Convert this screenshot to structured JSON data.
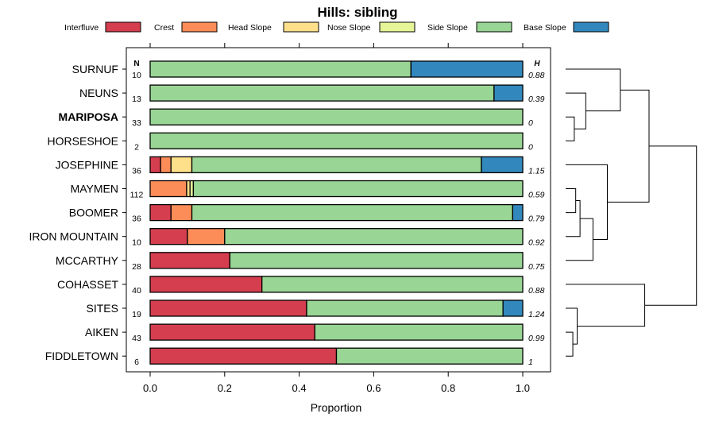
{
  "chart_data": {
    "type": "bar",
    "orientation": "horizontal",
    "stacked": true,
    "title": "Hills: sibling",
    "xlabel": "Proportion",
    "ylabel": "",
    "xlim": [
      0,
      1
    ],
    "xticks": [
      "0.0",
      "0.2",
      "0.4",
      "0.6",
      "0.8",
      "1.0"
    ],
    "xtick_values": [
      0,
      0.2,
      0.4,
      0.6,
      0.8,
      1.0
    ],
    "n_header": "N",
    "h_header": "H",
    "legend_position": "top",
    "legend": [
      {
        "name": "Interfluve",
        "color": "#D53E4F"
      },
      {
        "name": "Crest",
        "color": "#FC8D59"
      },
      {
        "name": "Head Slope",
        "color": "#FEE08B"
      },
      {
        "name": "Nose Slope",
        "color": "#E6F598"
      },
      {
        "name": "Side Slope",
        "color": "#99D594"
      },
      {
        "name": "Base Slope",
        "color": "#3288BD"
      }
    ],
    "categories": [
      "SURNUF",
      "NEUNS",
      "MARIPOSA",
      "HORSESHOE",
      "JOSEPHINE",
      "MAYMEN",
      "BOOMER",
      "IRON MOUNTAIN",
      "MCCARTHY",
      "COHASSET",
      "SITES",
      "AIKEN",
      "FIDDLETOWN"
    ],
    "highlight": "MARIPOSA",
    "n": [
      "10",
      "13",
      "33",
      "2",
      "36",
      "112",
      "36",
      "10",
      "28",
      "40",
      "19",
      "43",
      "6"
    ],
    "h": [
      "0.88",
      "0.39",
      "0",
      "0",
      "1.15",
      "0.59",
      "0.79",
      "0.92",
      "0.75",
      "0.88",
      "1.24",
      "0.99",
      "1"
    ],
    "series": [
      {
        "name": "Interfluve",
        "values": [
          0,
          0,
          0,
          0,
          0.028,
          0,
          0.056,
          0.1,
          0.214,
          0.3,
          0.42,
          0.442,
          0.5
        ]
      },
      {
        "name": "Crest",
        "values": [
          0,
          0,
          0,
          0,
          0.028,
          0.098,
          0.056,
          0.1,
          0,
          0,
          0,
          0,
          0
        ]
      },
      {
        "name": "Head Slope",
        "values": [
          0,
          0,
          0,
          0,
          0.056,
          0.009,
          0,
          0,
          0,
          0,
          0,
          0,
          0
        ]
      },
      {
        "name": "Nose Slope",
        "values": [
          0,
          0,
          0,
          0,
          0,
          0.009,
          0,
          0,
          0,
          0,
          0,
          0,
          0
        ]
      },
      {
        "name": "Side Slope",
        "values": [
          0.7,
          0.923,
          1.0,
          1.0,
          0.777,
          0.884,
          0.861,
          0.8,
          0.786,
          0.7,
          0.527,
          0.558,
          0.5
        ]
      },
      {
        "name": "Base Slope",
        "values": [
          0.3,
          0.077,
          0,
          0,
          0.111,
          0,
          0.027,
          0,
          0,
          0,
          0.053,
          0,
          0
        ]
      }
    ],
    "dendrogram": {
      "type": "hierarchical-clustering",
      "leaf_order": [
        "SURNUF",
        "NEUNS",
        "MARIPOSA",
        "HORSESHOE",
        "JOSEPHINE",
        "MAYMEN",
        "BOOMER",
        "IRON MOUNTAIN",
        "MCCARTHY",
        "COHASSET",
        "SITES",
        "AIKEN",
        "FIDDLETOWN"
      ],
      "merges": [
        {
          "a": "MARIPOSA",
          "b": "HORSESHOE",
          "height": 0.06
        },
        {
          "a": "MAYMEN",
          "b": "BOOMER",
          "height": 0.07
        },
        {
          "a": "AIKEN",
          "b": "FIDDLETOWN",
          "height": 0.05
        },
        {
          "a": "SITES",
          "b": "AIKEN+FIDDLETOWN",
          "height": 0.08
        },
        {
          "a": "NEUNS",
          "b": "MARIPOSA+HORSESHOE",
          "height": 0.14
        },
        {
          "a": "MAYMEN+BOOMER",
          "b": "IRON MOUNTAIN",
          "height": 0.1
        },
        {
          "a": "MAYMEN+BOOMER+IRON MOUNTAIN",
          "b": "MCCARTHY",
          "height": 0.19
        },
        {
          "a": "JOSEPHINE",
          "b": "MAYMEN+BOOMER+IRON MOUNTAIN+MCCARTHY",
          "height": 0.29
        },
        {
          "a": "SURNUF",
          "b": "NEUNS+MARIPOSA+HORSESHOE",
          "height": 0.38
        },
        {
          "a": "COHASSET",
          "b": "SITES+AIKEN+FIDDLETOWN",
          "height": 0.55
        },
        {
          "a": "SURNUF+NEUNS+MARIPOSA+HORSESHOE",
          "b": "JOSEPHINE+MAYMEN+BOOMER+IRON MOUNTAIN+MCCARTHY",
          "height": 0.58
        },
        {
          "a": "SURNUF..MCCARTHY",
          "b": "COHASSET..FIDDLETOWN",
          "height": 0.91
        }
      ]
    }
  }
}
